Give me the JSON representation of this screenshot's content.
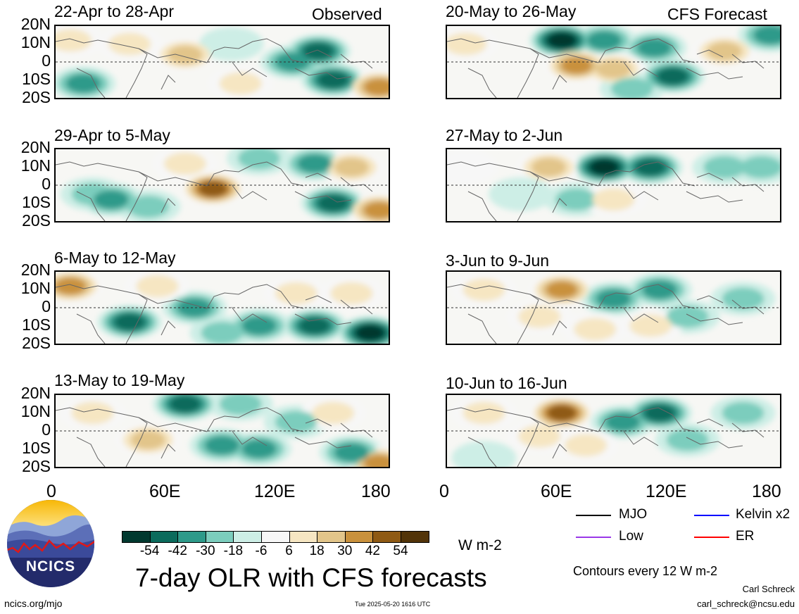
{
  "header": {
    "observed_label": "Observed",
    "forecast_label": "CFS Forecast"
  },
  "observed_panels": [
    {
      "title": "22-Apr to 28-Apr"
    },
    {
      "title": "29-Apr to 5-May"
    },
    {
      "title": "6-May to 12-May"
    },
    {
      "title": "13-May to 19-May"
    }
  ],
  "forecast_panels": [
    {
      "title": "20-May to 26-May"
    },
    {
      "title": "27-May to 2-Jun"
    },
    {
      "title": "3-Jun to 9-Jun"
    },
    {
      "title": "10-Jun to 16-Jun"
    }
  ],
  "lat_labels": [
    "20N",
    "10N",
    "0",
    "10S",
    "20S"
  ],
  "lon_labels": [
    "0",
    "60E",
    "120E",
    "180"
  ],
  "colorbar": {
    "colors": [
      "#01392f",
      "#0b6b5c",
      "#2e9a8a",
      "#7ccdbd",
      "#cdeee6",
      "#f7f7f7",
      "#f6e6c2",
      "#e2c58a",
      "#c9913c",
      "#8f5a14",
      "#523409"
    ],
    "tick_labels": [
      "-54",
      "-42",
      "-30",
      "-18",
      "-6",
      "6",
      "18",
      "30",
      "42",
      "54"
    ],
    "units": "W m-2"
  },
  "legend": {
    "items": [
      {
        "label": "MJO",
        "color": "#000000"
      },
      {
        "label": "Kelvin x2",
        "color": "#0000ff"
      },
      {
        "label": "Low",
        "color": "#9a38e8"
      },
      {
        "label": "ER",
        "color": "#ff0000"
      }
    ],
    "contour_note": "Contours every 12 W m-2"
  },
  "title": "7-day OLR with CFS forecasts",
  "logo_text": "NCICS",
  "footer": {
    "url": "ncics.org/mjo",
    "timestamp": "Tue 2025-05-20 1616 UTC",
    "author": "Carl Schreck",
    "email": "carl_schreck@ncsu.edu"
  },
  "map_fields": {
    "observed": [
      [
        {
          "lon": 142,
          "lat": 6,
          "v": -42
        },
        {
          "lon": 150,
          "lat": -10,
          "v": -42
        },
        {
          "lon": 128,
          "lat": 0,
          "v": -30
        },
        {
          "lon": 175,
          "lat": -14,
          "v": 42
        },
        {
          "lon": 70,
          "lat": 4,
          "v": 30
        },
        {
          "lon": 40,
          "lat": 10,
          "v": 18
        },
        {
          "lon": 8,
          "lat": 12,
          "v": 18
        },
        {
          "lon": 15,
          "lat": -12,
          "v": -30
        },
        {
          "lon": 100,
          "lat": -12,
          "v": 18
        },
        {
          "lon": 95,
          "lat": 10,
          "v": -6
        }
      ],
      [
        {
          "lon": 85,
          "lat": -2,
          "v": 54
        },
        {
          "lon": 140,
          "lat": 12,
          "v": -30
        },
        {
          "lon": 150,
          "lat": -10,
          "v": -42
        },
        {
          "lon": 110,
          "lat": 15,
          "v": -18
        },
        {
          "lon": 20,
          "lat": -5,
          "v": -18
        },
        {
          "lon": 30,
          "lat": -8,
          "v": -30
        },
        {
          "lon": 175,
          "lat": -14,
          "v": 42
        },
        {
          "lon": 70,
          "lat": 12,
          "v": 18
        },
        {
          "lon": 50,
          "lat": -12,
          "v": -18
        },
        {
          "lon": 160,
          "lat": 10,
          "v": 30
        }
      ],
      [
        {
          "lon": 8,
          "lat": 12,
          "v": 42
        },
        {
          "lon": 40,
          "lat": -8,
          "v": -42
        },
        {
          "lon": 75,
          "lat": 0,
          "v": -30
        },
        {
          "lon": 170,
          "lat": -14,
          "v": -54
        },
        {
          "lon": 140,
          "lat": -10,
          "v": -42
        },
        {
          "lon": 110,
          "lat": -10,
          "v": -30
        },
        {
          "lon": 55,
          "lat": 12,
          "v": 18
        },
        {
          "lon": 130,
          "lat": 8,
          "v": 18
        },
        {
          "lon": 90,
          "lat": -14,
          "v": -18
        },
        {
          "lon": 160,
          "lat": 8,
          "v": 18
        }
      ],
      [
        {
          "lon": 70,
          "lat": 15,
          "v": -42
        },
        {
          "lon": 90,
          "lat": -8,
          "v": -30
        },
        {
          "lon": 110,
          "lat": -10,
          "v": -30
        },
        {
          "lon": 50,
          "lat": -5,
          "v": 30
        },
        {
          "lon": 130,
          "lat": 5,
          "v": -18
        },
        {
          "lon": 160,
          "lat": -12,
          "v": -30
        },
        {
          "lon": 175,
          "lat": -18,
          "v": 42
        },
        {
          "lon": 20,
          "lat": 10,
          "v": 18
        },
        {
          "lon": 100,
          "lat": 15,
          "v": -18
        },
        {
          "lon": 150,
          "lat": 10,
          "v": 18
        }
      ]
    ],
    "forecast": [
      [
        {
          "lon": 62,
          "lat": 12,
          "v": -54
        },
        {
          "lon": 85,
          "lat": 12,
          "v": -30
        },
        {
          "lon": 70,
          "lat": -2,
          "v": 42
        },
        {
          "lon": 122,
          "lat": -8,
          "v": -42
        },
        {
          "lon": 112,
          "lat": 8,
          "v": -30
        },
        {
          "lon": 150,
          "lat": 6,
          "v": 30
        },
        {
          "lon": 175,
          "lat": 15,
          "v": -30
        },
        {
          "lon": 10,
          "lat": 10,
          "v": 18
        },
        {
          "lon": 90,
          "lat": -4,
          "v": 30
        },
        {
          "lon": 100,
          "lat": -15,
          "v": -18
        }
      ],
      [
        {
          "lon": 85,
          "lat": 10,
          "v": -54
        },
        {
          "lon": 110,
          "lat": 10,
          "v": -42
        },
        {
          "lon": 55,
          "lat": 10,
          "v": 30
        },
        {
          "lon": 150,
          "lat": 10,
          "v": -18
        },
        {
          "lon": 70,
          "lat": -8,
          "v": -18
        },
        {
          "lon": 90,
          "lat": -8,
          "v": 18
        },
        {
          "lon": 170,
          "lat": 10,
          "v": -18
        },
        {
          "lon": 10,
          "lat": 10,
          "v": 6
        },
        {
          "lon": 40,
          "lat": -5,
          "v": -6
        }
      ],
      [
        {
          "lon": 62,
          "lat": 10,
          "v": 42
        },
        {
          "lon": 90,
          "lat": 5,
          "v": -30
        },
        {
          "lon": 115,
          "lat": 10,
          "v": -30
        },
        {
          "lon": 130,
          "lat": -5,
          "v": -18
        },
        {
          "lon": 50,
          "lat": -5,
          "v": 18
        },
        {
          "lon": 160,
          "lat": 5,
          "v": -18
        },
        {
          "lon": 110,
          "lat": -10,
          "v": 18
        },
        {
          "lon": 20,
          "lat": 10,
          "v": 18
        },
        {
          "lon": 80,
          "lat": -12,
          "v": 18
        }
      ],
      [
        {
          "lon": 62,
          "lat": 10,
          "v": 54
        },
        {
          "lon": 95,
          "lat": 5,
          "v": -30
        },
        {
          "lon": 115,
          "lat": 10,
          "v": -42
        },
        {
          "lon": 160,
          "lat": 10,
          "v": -18
        },
        {
          "lon": 50,
          "lat": -3,
          "v": 18
        },
        {
          "lon": 75,
          "lat": -8,
          "v": 18
        },
        {
          "lon": 20,
          "lat": 10,
          "v": 18
        },
        {
          "lon": 130,
          "lat": -5,
          "v": -18
        },
        {
          "lon": 20,
          "lat": -15,
          "v": -6
        }
      ]
    ]
  }
}
